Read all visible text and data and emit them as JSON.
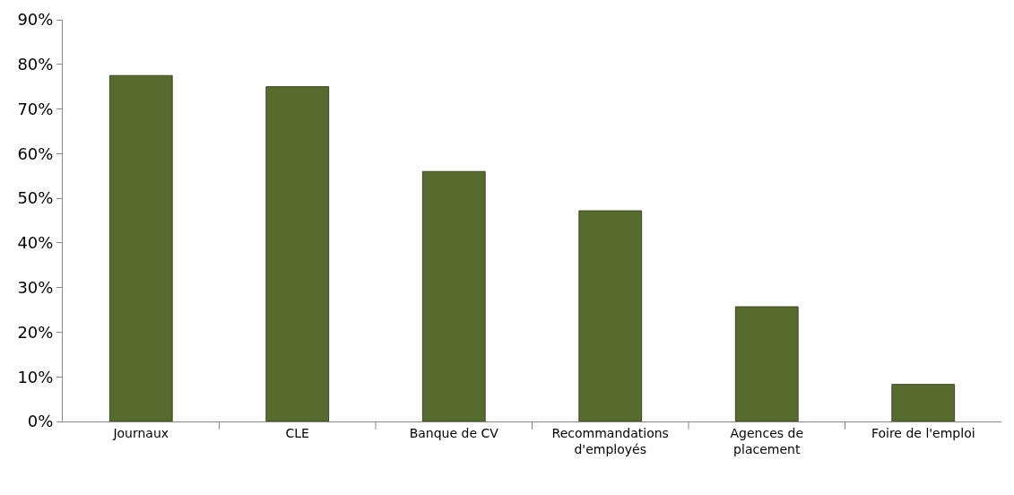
{
  "chart_data": {
    "type": "bar",
    "categories": [
      "Journaux",
      "CLE",
      "Banque de CV",
      "Recommandations\nd'employés",
      "Agences de\nplacement",
      "Foire de l'emploi"
    ],
    "values": [
      77.5,
      75,
      56,
      47.2,
      25.7,
      8.3
    ],
    "color": "#586b2f",
    "ylim": [
      0,
      90
    ],
    "yticks": [
      {
        "value": 0,
        "label": "0%"
      },
      {
        "value": 10,
        "label": "10%"
      },
      {
        "value": 20,
        "label": "20%"
      },
      {
        "value": 30,
        "label": "30%"
      },
      {
        "value": 40,
        "label": "40%"
      },
      {
        "value": 50,
        "label": "50%"
      },
      {
        "value": 60,
        "label": "60%"
      },
      {
        "value": 70,
        "label": "70%"
      },
      {
        "value": 80,
        "label": "80%"
      },
      {
        "value": 90,
        "label": "90%"
      }
    ],
    "grid": false
  }
}
